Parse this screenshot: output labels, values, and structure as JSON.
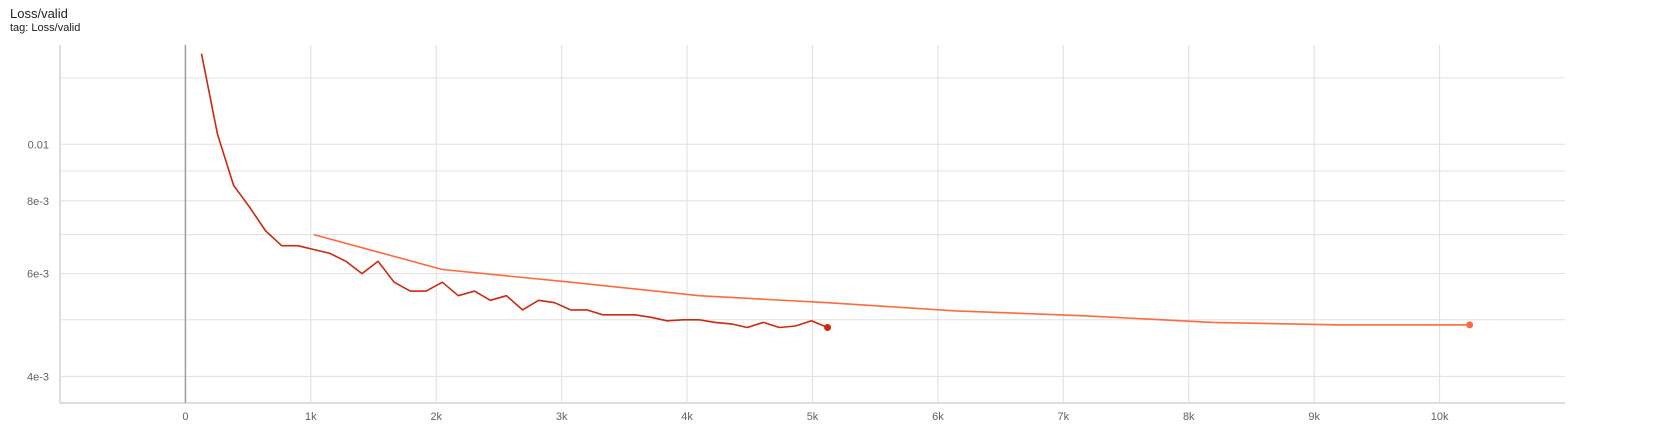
{
  "card": {
    "title": "Loss/valid",
    "subtitle": "tag: Loss/valid"
  },
  "colors": {
    "series_a": "#cc2a0e",
    "series_b": "#ff6a3d",
    "grid": "#e0e0e0",
    "zero_line": "#9e9e9e"
  },
  "chart_data": {
    "type": "line",
    "title": "Loss/valid",
    "xlabel": "",
    "ylabel": "",
    "y_scale": "log",
    "xlim": [
      -1000,
      11000
    ],
    "ylim": [
      0.0036,
      0.0148
    ],
    "grid": true,
    "x_ticks": [
      0,
      1000,
      2000,
      3000,
      4000,
      5000,
      6000,
      7000,
      8000,
      9000,
      10000
    ],
    "x_tick_labels": [
      "0",
      "1k",
      "2k",
      "3k",
      "4k",
      "5k",
      "6k",
      "7k",
      "8k",
      "9k",
      "10k"
    ],
    "y_ticks": [
      0.004,
      0.006,
      0.008,
      0.01
    ],
    "y_tick_labels": [
      "4e-3",
      "6e-3",
      "8e-3",
      "0.01"
    ],
    "y_minor_grid": [
      0.005,
      0.007,
      0.009,
      0.013
    ],
    "series": [
      {
        "color": "#cc2a0e",
        "x": [
          128,
          256,
          384,
          512,
          640,
          768,
          896,
          1024,
          1152,
          1280,
          1408,
          1536,
          1664,
          1792,
          1920,
          2048,
          2176,
          2304,
          2432,
          2560,
          2688,
          2816,
          2944,
          3072,
          3200,
          3328,
          3456,
          3584,
          3712,
          3840,
          3968,
          4096,
          4224,
          4352,
          4480,
          4608,
          4736,
          4864,
          4992,
          5120
        ],
        "y": [
          0.0143,
          0.0104,
          0.0085,
          0.0078,
          0.0071,
          0.0067,
          0.0067,
          0.0066,
          0.0065,
          0.0063,
          0.006,
          0.0063,
          0.0058,
          0.0056,
          0.0056,
          0.0058,
          0.0055,
          0.0056,
          0.0054,
          0.0055,
          0.0052,
          0.0054,
          0.00535,
          0.0052,
          0.0052,
          0.0051,
          0.0051,
          0.0051,
          0.00505,
          0.00498,
          0.005,
          0.005,
          0.00495,
          0.00492,
          0.00485,
          0.00495,
          0.00485,
          0.00488,
          0.00498,
          0.00485
        ]
      },
      {
        "color": "#ff6a3d",
        "x": [
          1024,
          2048,
          3072,
          4096,
          5120,
          6144,
          7168,
          8192,
          9216,
          10240
        ],
        "y": [
          0.007,
          0.0061,
          0.0058,
          0.0055,
          0.00535,
          0.00518,
          0.00508,
          0.00495,
          0.0049,
          0.0049
        ]
      }
    ]
  }
}
